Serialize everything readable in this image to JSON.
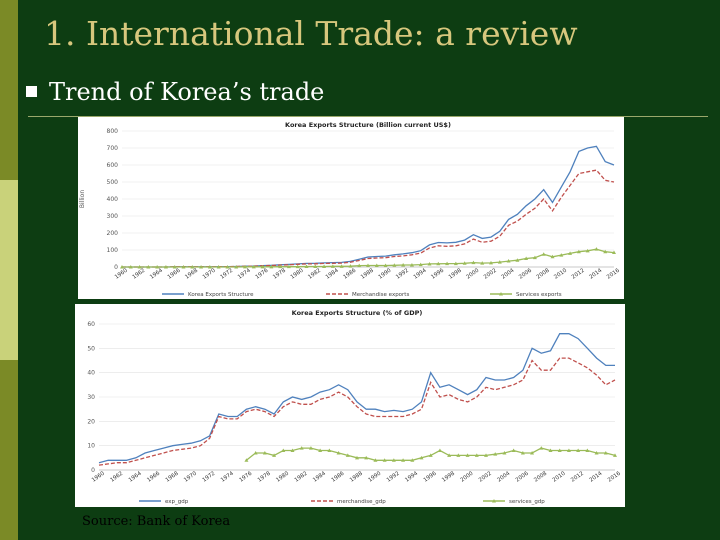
{
  "slide": {
    "title": "1. International Trade: a review",
    "bullet": "Trend of Korea’s trade",
    "source": "Source: Bank of Korea",
    "colors": {
      "background": "#0d3d12",
      "title": "#d7c77d",
      "bar_dark": "#7b8a26",
      "bar_light": "#c9d27a"
    }
  },
  "chart_data": [
    {
      "type": "line",
      "title": "Korea Exports Structure (Billion current US$)",
      "ylabel": "Billion",
      "ylim": [
        0,
        800
      ],
      "yticks": [
        "0",
        "100",
        "200",
        "300",
        "400",
        "500",
        "600",
        "700",
        "800"
      ],
      "xlabels": [
        "1960",
        "1962",
        "1964",
        "1966",
        "1968",
        "1970",
        "1972",
        "1974",
        "1976",
        "1978",
        "1980",
        "1982",
        "1984",
        "1986",
        "1988",
        "1990",
        "1992",
        "1994",
        "1996",
        "1998",
        "2000",
        "2002",
        "2004",
        "2006",
        "2008",
        "2010",
        "2012",
        "2014",
        "2016"
      ],
      "x": [
        1960,
        1961,
        1962,
        1963,
        1964,
        1965,
        1966,
        1967,
        1968,
        1969,
        1970,
        1971,
        1972,
        1973,
        1974,
        1975,
        1976,
        1977,
        1978,
        1979,
        1980,
        1981,
        1982,
        1983,
        1984,
        1985,
        1986,
        1987,
        1988,
        1989,
        1990,
        1991,
        1992,
        1993,
        1994,
        1995,
        1996,
        1997,
        1998,
        1999,
        2000,
        2001,
        2002,
        2003,
        2004,
        2005,
        2006,
        2007,
        2008,
        2009,
        2010,
        2011,
        2012,
        2013,
        2014,
        2015,
        2016
      ],
      "series": [
        {
          "name": "Korea Exports Structure",
          "color": "#4f81bd",
          "style": "solid",
          "values": [
            0,
            0,
            0,
            0,
            0,
            0,
            1,
            1,
            1,
            1,
            1,
            2,
            2,
            3,
            5,
            6,
            8,
            10,
            13,
            15,
            18,
            21,
            22,
            24,
            26,
            27,
            33,
            46,
            59,
            62,
            64,
            72,
            77,
            84,
            96,
            130,
            144,
            142,
            145,
            158,
            190,
            168,
            176,
            210,
            280,
            310,
            360,
            400,
            455,
            380,
            470,
            560,
            680,
            700,
            710,
            620,
            600
          ]
        },
        {
          "name": "Merchandise exports",
          "color": "#c0504d",
          "style": "dashed",
          "values": [
            0,
            0,
            0,
            0,
            0,
            0,
            1,
            1,
            1,
            1,
            1,
            2,
            2,
            3,
            4,
            5,
            7,
            9,
            11,
            13,
            16,
            18,
            19,
            21,
            22,
            23,
            28,
            38,
            50,
            53,
            55,
            62,
            65,
            72,
            82,
            112,
            125,
            122,
            125,
            136,
            164,
            145,
            152,
            181,
            245,
            270,
            310,
            345,
            400,
            330,
            410,
            480,
            550,
            560,
            570,
            510,
            500
          ]
        },
        {
          "name": "Services exports",
          "color": "#9bbb59",
          "style": "solid-markers",
          "values": [
            0,
            0,
            0,
            0,
            0,
            0,
            0,
            0,
            0,
            0,
            0,
            0,
            0,
            0,
            1,
            1,
            1,
            1,
            2,
            2,
            2,
            3,
            3,
            3,
            4,
            4,
            5,
            8,
            9,
            9,
            9,
            10,
            12,
            12,
            14,
            18,
            19,
            20,
            20,
            22,
            26,
            23,
            24,
            29,
            35,
            40,
            50,
            55,
            75,
            60,
            70,
            80,
            90,
            95,
            105,
            90,
            85
          ]
        }
      ]
    },
    {
      "type": "line",
      "title": "Korea Exports Structure (% of GDP)",
      "ylim": [
        0,
        60
      ],
      "yticks": [
        "0",
        "10",
        "20",
        "30",
        "40",
        "50",
        "60"
      ],
      "xlabels": [
        "1960",
        "1962",
        "1964",
        "1966",
        "1968",
        "1970",
        "1972",
        "1974",
        "1976",
        "1978",
        "1980",
        "1982",
        "1984",
        "1986",
        "1988",
        "1990",
        "1992",
        "1994",
        "1996",
        "1998",
        "2000",
        "2002",
        "2004",
        "2006",
        "2008",
        "2010",
        "2012",
        "2014",
        "2016"
      ],
      "x": [
        1960,
        1961,
        1962,
        1963,
        1964,
        1965,
        1966,
        1967,
        1968,
        1969,
        1970,
        1971,
        1972,
        1973,
        1974,
        1975,
        1976,
        1977,
        1978,
        1979,
        1980,
        1981,
        1982,
        1983,
        1984,
        1985,
        1986,
        1987,
        1988,
        1989,
        1990,
        1991,
        1992,
        1993,
        1994,
        1995,
        1996,
        1997,
        1998,
        1999,
        2000,
        2001,
        2002,
        2003,
        2004,
        2005,
        2006,
        2007,
        2008,
        2009,
        2010,
        2011,
        2012,
        2013,
        2014,
        2015,
        2016
      ],
      "series": [
        {
          "name": "exp_gdp",
          "color": "#4f81bd",
          "style": "solid",
          "values": [
            3,
            4,
            4,
            4,
            5,
            7,
            8,
            9,
            10,
            10.5,
            11,
            12,
            14,
            23,
            22,
            22,
            25,
            26,
            25,
            23,
            28,
            30,
            29,
            30,
            32,
            33,
            35,
            33,
            28,
            25,
            25,
            24,
            24.5,
            24,
            25,
            28,
            40,
            34,
            35,
            33,
            31,
            33,
            38,
            37,
            37,
            38,
            41,
            50,
            48,
            49,
            56,
            56,
            54,
            50,
            46,
            43,
            43
          ]
        },
        {
          "name": "merchandise_gdp",
          "color": "#c0504d",
          "style": "dashed",
          "values": [
            2,
            2.5,
            3,
            3,
            4,
            5,
            6,
            7,
            8,
            8.5,
            9,
            10,
            13,
            22,
            21,
            21,
            24,
            25,
            24,
            22,
            26,
            28,
            27,
            27,
            29,
            30,
            32,
            30,
            26,
            23,
            22,
            22,
            22,
            22,
            23,
            25,
            36,
            30,
            31,
            29,
            28,
            30,
            34,
            33,
            34,
            35,
            37,
            45,
            41,
            41,
            46,
            46,
            44,
            42,
            39,
            35,
            37
          ]
        },
        {
          "name": "services_gdp",
          "color": "#9bbb59",
          "style": "solid-markers",
          "values": [
            null,
            null,
            null,
            null,
            null,
            null,
            null,
            null,
            null,
            null,
            null,
            null,
            null,
            null,
            null,
            null,
            4,
            7,
            7,
            6,
            8,
            8,
            9,
            9,
            8,
            8,
            7,
            6,
            5,
            5,
            4,
            4,
            4,
            4,
            4,
            5,
            6,
            8,
            6,
            6,
            6,
            6,
            6,
            6.5,
            7,
            8,
            7,
            7,
            9,
            8,
            8,
            8,
            8,
            8,
            7,
            7,
            6
          ]
        }
      ]
    }
  ]
}
